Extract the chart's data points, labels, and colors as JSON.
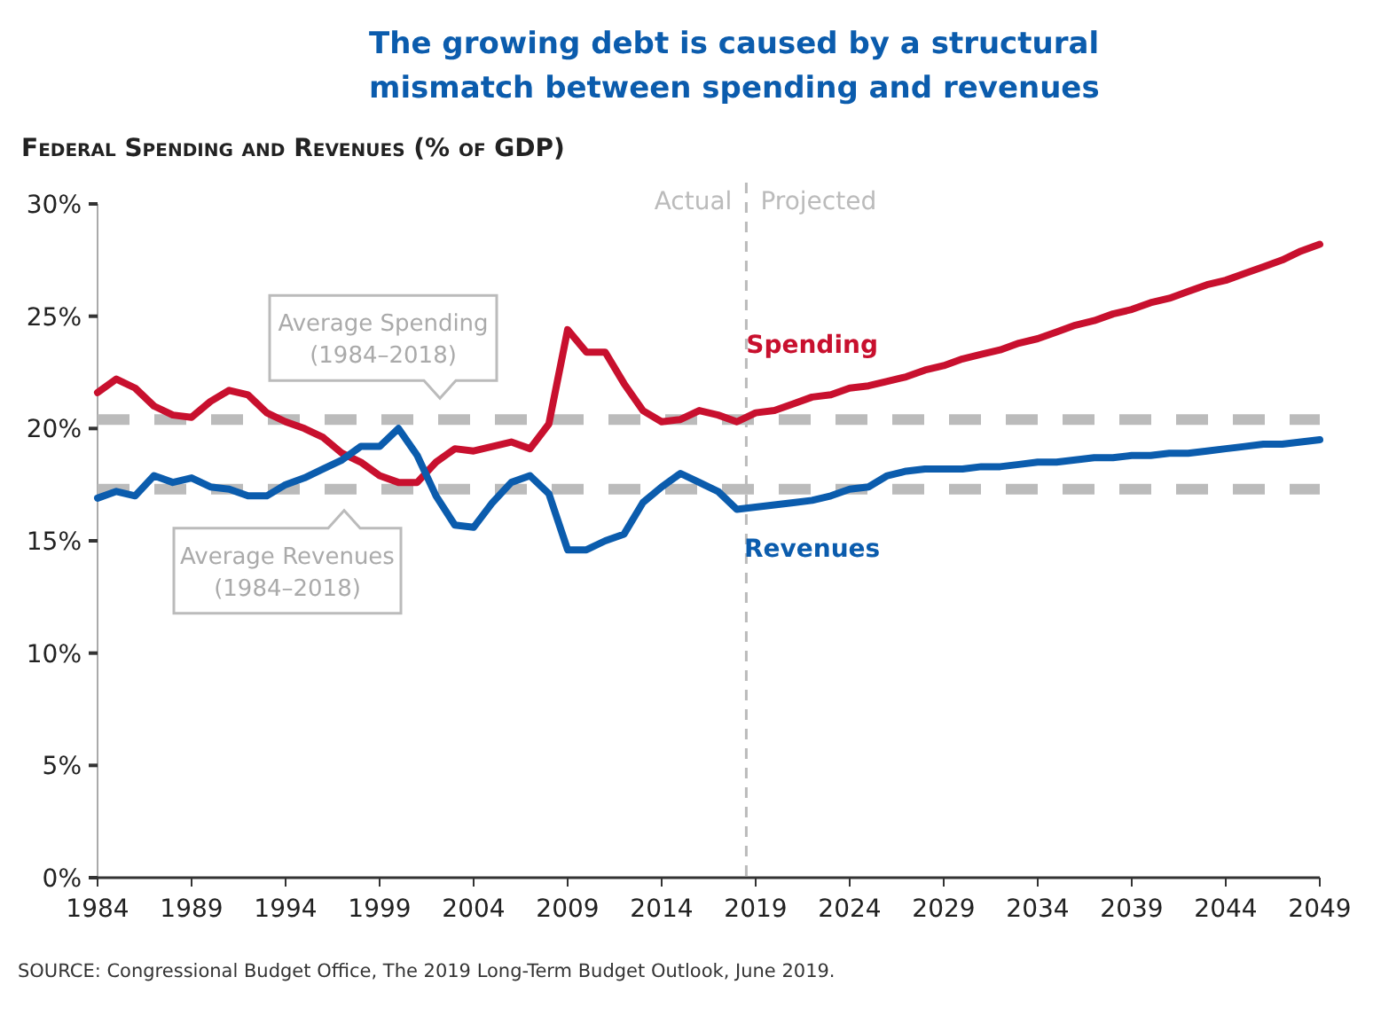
{
  "chart_data": {
    "type": "line",
    "title": "The growing debt is caused by a structural mismatch between spending and revenues",
    "subtitle": "Federal Spending and Revenues (% of GDP)",
    "x": [
      1984,
      1985,
      1986,
      1987,
      1988,
      1989,
      1990,
      1991,
      1992,
      1993,
      1994,
      1995,
      1996,
      1997,
      1998,
      1999,
      2000,
      2001,
      2002,
      2003,
      2004,
      2005,
      2006,
      2007,
      2008,
      2009,
      2010,
      2011,
      2012,
      2013,
      2014,
      2015,
      2016,
      2017,
      2018,
      2019,
      2020,
      2021,
      2022,
      2023,
      2024,
      2025,
      2026,
      2027,
      2028,
      2029,
      2030,
      2031,
      2032,
      2033,
      2034,
      2035,
      2036,
      2037,
      2038,
      2039,
      2040,
      2041,
      2042,
      2043,
      2044,
      2045,
      2046,
      2047,
      2048,
      2049
    ],
    "series": [
      {
        "name": "Spending",
        "color": "#c8102e",
        "values": [
          21.6,
          22.2,
          21.8,
          21.0,
          20.6,
          20.5,
          21.2,
          21.7,
          21.5,
          20.7,
          20.3,
          20.0,
          19.6,
          18.9,
          18.5,
          17.9,
          17.6,
          17.6,
          18.5,
          19.1,
          19.0,
          19.2,
          19.4,
          19.1,
          20.2,
          24.4,
          23.4,
          23.4,
          22.0,
          20.8,
          20.3,
          20.4,
          20.8,
          20.6,
          20.3,
          20.7,
          20.8,
          21.1,
          21.4,
          21.5,
          21.8,
          21.9,
          22.1,
          22.3,
          22.6,
          22.8,
          23.1,
          23.3,
          23.5,
          23.8,
          24.0,
          24.3,
          24.6,
          24.8,
          25.1,
          25.3,
          25.6,
          25.8,
          26.1,
          26.4,
          26.6,
          26.9,
          27.2,
          27.5,
          27.9,
          28.2
        ]
      },
      {
        "name": "Revenues",
        "color": "#0b5cad",
        "values": [
          16.9,
          17.2,
          17.0,
          17.9,
          17.6,
          17.8,
          17.4,
          17.3,
          17.0,
          17.0,
          17.5,
          17.8,
          18.2,
          18.6,
          19.2,
          19.2,
          20.0,
          18.8,
          17.0,
          15.7,
          15.6,
          16.7,
          17.6,
          17.9,
          17.1,
          14.6,
          14.6,
          15.0,
          15.3,
          16.7,
          17.4,
          18.0,
          17.6,
          17.2,
          16.4,
          16.5,
          16.6,
          16.7,
          16.8,
          17.0,
          17.3,
          17.4,
          17.9,
          18.1,
          18.2,
          18.2,
          18.2,
          18.3,
          18.3,
          18.4,
          18.5,
          18.5,
          18.6,
          18.7,
          18.7,
          18.8,
          18.8,
          18.9,
          18.9,
          19.0,
          19.1,
          19.2,
          19.3,
          19.3,
          19.4,
          19.5
        ]
      }
    ],
    "xlim": [
      1984,
      2049
    ],
    "xticks": [
      1984,
      1989,
      1994,
      1999,
      2004,
      2009,
      2014,
      2019,
      2024,
      2029,
      2034,
      2039,
      2044,
      2049
    ],
    "ylim": [
      0,
      30
    ],
    "yticks": [
      {
        "value": 0,
        "label": "0%"
      },
      {
        "value": 5,
        "label": "5%"
      },
      {
        "value": 10,
        "label": "10%"
      },
      {
        "value": 15,
        "label": "15%"
      },
      {
        "value": 20,
        "label": "20%"
      },
      {
        "value": 25,
        "label": "25%"
      },
      {
        "value": 30,
        "label": "30%"
      }
    ],
    "ref_lines": [
      {
        "axis": "y",
        "value": 20.4,
        "label": "Average Spending (1984–2018)",
        "color": "#bbbbbb",
        "line_style": "dashed"
      },
      {
        "axis": "y",
        "value": 17.3,
        "label": "Average Revenues (1984–2018)",
        "color": "#bbbbbb",
        "line_style": "dashed"
      },
      {
        "axis": "x",
        "value": 2018.5,
        "color": "#bbbbbb",
        "line_style": "dashed"
      }
    ],
    "annotations": [
      "Actual",
      "Projected",
      "SOURCE: Congressional Budget Office, The 2019 Long-Term Budget Outlook, June 2019."
    ],
    "grid": false,
    "marker": "none",
    "line_style": "solid"
  }
}
